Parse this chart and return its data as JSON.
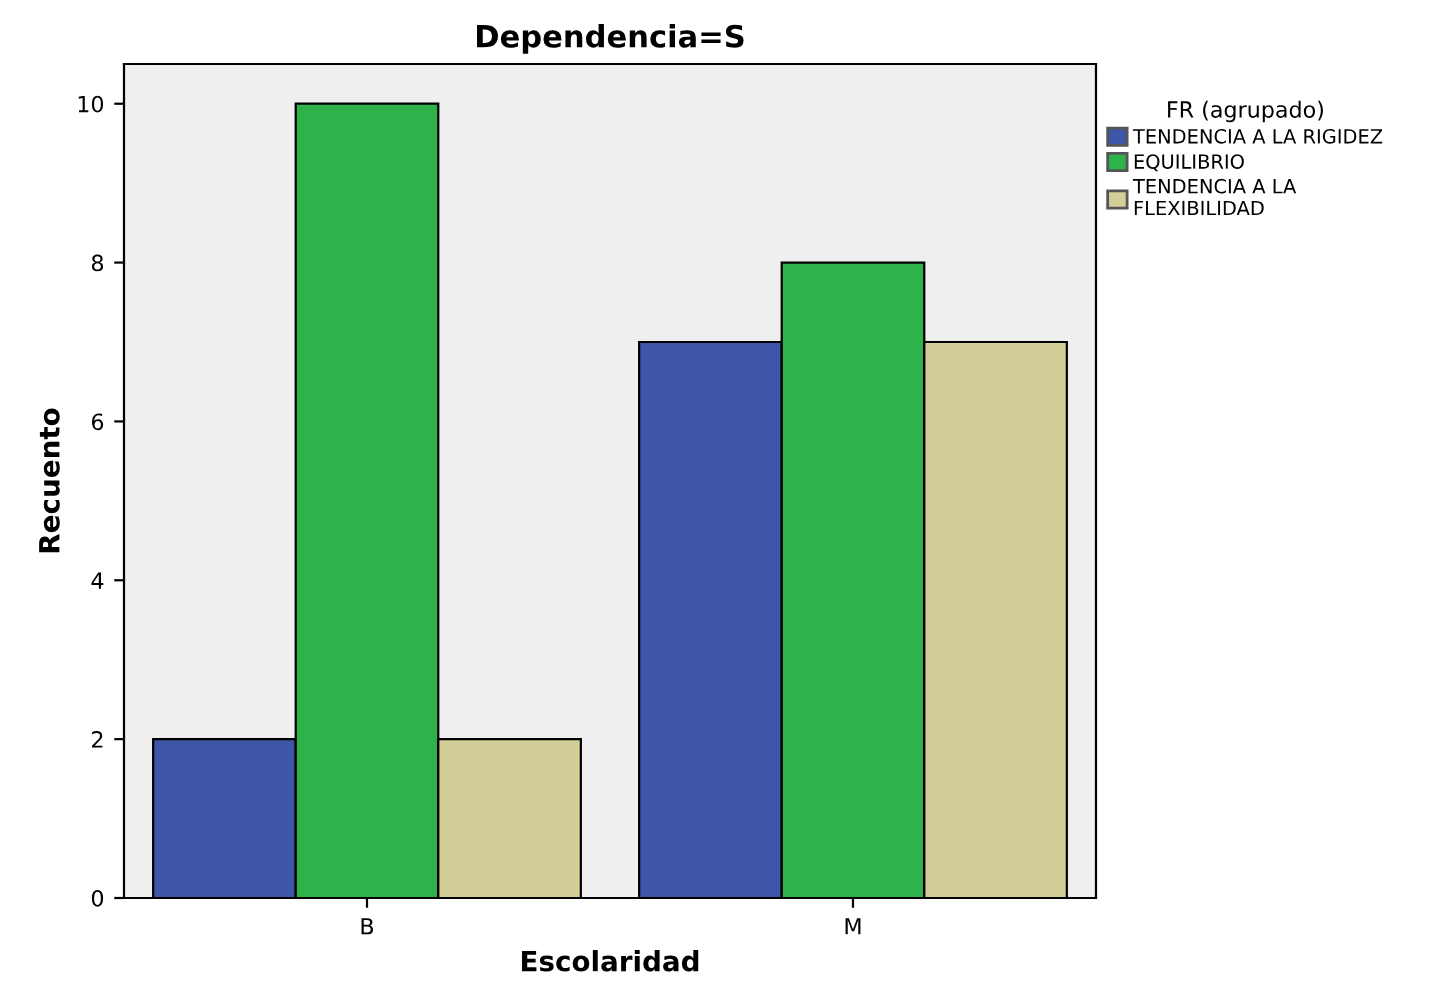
{
  "chart_data": {
    "type": "bar",
    "title": "Dependencia=S",
    "xlabel": "Escolaridad",
    "ylabel": "Recuento",
    "legend_title": "FR (agrupado)",
    "categories": [
      "B",
      "M"
    ],
    "series": [
      {
        "name": "TENDENCIA A LA RIGIDEZ",
        "color": "#3d56a8",
        "values": [
          2,
          7
        ]
      },
      {
        "name": "EQUILIBRIO",
        "color": "#2eb34a",
        "values": [
          10,
          8
        ]
      },
      {
        "name": "TENDENCIA A LA\nFLEXIBILIDAD",
        "color": "#d3ce97",
        "values": [
          2,
          7
        ]
      }
    ],
    "ylim": [
      0,
      10.5
    ],
    "yticks": [
      0,
      2,
      4,
      6,
      8,
      10
    ],
    "grid": false,
    "legend": "right"
  }
}
